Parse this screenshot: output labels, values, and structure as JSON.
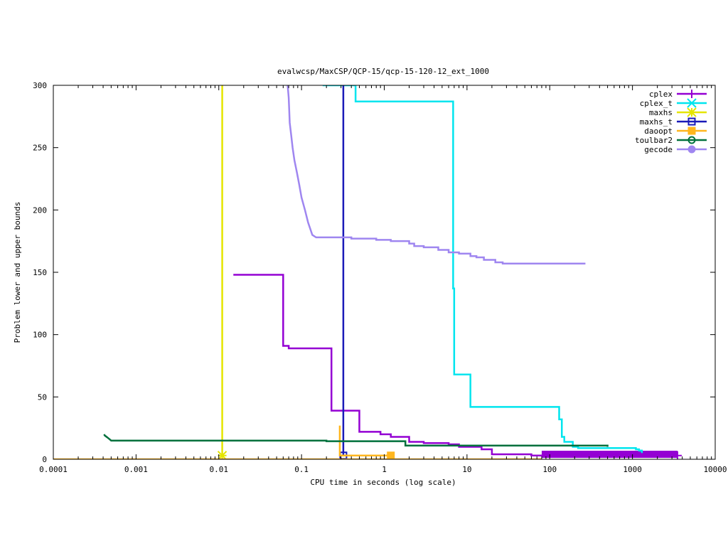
{
  "chart_data": {
    "type": "line",
    "title": "evalwcsp/MaxCSP/QCP-15/qcp-15-120-12_ext_1000",
    "xlabel": "CPU time in seconds (log scale)",
    "ylabel": "Problem lower and upper bounds",
    "xscale": "log",
    "xlim": [
      0.0001,
      10000
    ],
    "ylim": [
      0,
      300
    ],
    "x_ticks": [
      {
        "value": 0.0001,
        "label": "0.0001"
      },
      {
        "value": 0.001,
        "label": "0.001"
      },
      {
        "value": 0.01,
        "label": "0.01"
      },
      {
        "value": 0.1,
        "label": "0.1"
      },
      {
        "value": 1,
        "label": "1"
      },
      {
        "value": 10,
        "label": "10"
      },
      {
        "value": 100,
        "label": "100"
      },
      {
        "value": 1000,
        "label": "1000"
      },
      {
        "value": 10000,
        "label": "10000"
      }
    ],
    "y_ticks": [
      {
        "value": 0,
        "label": "0"
      },
      {
        "value": 50,
        "label": "50"
      },
      {
        "value": 100,
        "label": "100"
      },
      {
        "value": 150,
        "label": "150"
      },
      {
        "value": 200,
        "label": "200"
      },
      {
        "value": 250,
        "label": "250"
      },
      {
        "value": 300,
        "label": "300"
      }
    ],
    "grid": false,
    "legend_position": "top-right",
    "series": [
      {
        "name": "cplex",
        "color": "#9400d3",
        "marker": "plus",
        "points": [
          [
            0.015,
            148
          ],
          [
            0.06,
            148
          ],
          [
            0.06,
            91
          ],
          [
            0.07,
            91
          ],
          [
            0.07,
            89
          ],
          [
            0.23,
            89
          ],
          [
            0.23,
            39
          ],
          [
            0.5,
            39
          ],
          [
            0.5,
            22
          ],
          [
            0.9,
            22
          ],
          [
            0.9,
            20
          ],
          [
            1.2,
            20
          ],
          [
            1.2,
            18
          ],
          [
            2,
            18
          ],
          [
            2,
            14
          ],
          [
            3,
            14
          ],
          [
            3,
            13
          ],
          [
            6,
            13
          ],
          [
            6,
            12
          ],
          [
            8,
            12
          ],
          [
            8,
            10
          ],
          [
            15,
            10
          ],
          [
            15,
            8
          ],
          [
            20,
            8
          ],
          [
            20,
            4
          ],
          [
            60,
            4
          ],
          [
            60,
            3
          ],
          [
            3500,
            3
          ]
        ],
        "marker_points": [
          [
            3500,
            3
          ]
        ],
        "lower_band": {
          "x_start": 80,
          "x_end": 3500,
          "y": 4
        }
      },
      {
        "name": "cplex_t",
        "color": "#00e5ee",
        "marker": "x",
        "points": [
          [
            0.18,
            300
          ],
          [
            0.45,
            300
          ],
          [
            0.45,
            287
          ],
          [
            6.8,
            287
          ],
          [
            6.8,
            137
          ],
          [
            7,
            137
          ],
          [
            7,
            68
          ],
          [
            11,
            68
          ],
          [
            11,
            42
          ],
          [
            130,
            42
          ],
          [
            130,
            32
          ],
          [
            140,
            32
          ],
          [
            140,
            18
          ],
          [
            150,
            18
          ],
          [
            150,
            14
          ],
          [
            190,
            14
          ],
          [
            190,
            10
          ],
          [
            220,
            10
          ],
          [
            220,
            9
          ],
          [
            1100,
            9
          ],
          [
            1100,
            8
          ],
          [
            1200,
            8
          ],
          [
            1200,
            7
          ],
          [
            1300,
            7
          ],
          [
            1300,
            5
          ]
        ],
        "marker_points": []
      },
      {
        "name": "maxhs",
        "color": "#e5e500",
        "marker": "star",
        "points": [
          [
            0.011,
            300
          ],
          [
            0.011,
            3
          ]
        ],
        "marker_points": [
          [
            0.011,
            3
          ]
        ]
      },
      {
        "name": "maxhs_t",
        "color": "#1a1ab8",
        "marker": "square",
        "points": [
          [
            0.32,
            300
          ],
          [
            0.32,
            3
          ]
        ],
        "marker_points": [
          [
            0.32,
            3
          ]
        ]
      },
      {
        "name": "daoopt",
        "color": "#ffb61e",
        "marker": "filled-square",
        "points": [
          [
            0.0001,
            0
          ],
          [
            80,
            0
          ]
        ],
        "extra_paths": [
          [
            [
              0.29,
              27
            ],
            [
              0.29,
              3
            ],
            [
              1.2,
              3
            ]
          ],
          [
            [
              0.29,
              3
            ],
            [
              0.3,
              3
            ]
          ]
        ],
        "marker_points": [
          [
            1.2,
            3
          ]
        ]
      },
      {
        "name": "toulbar2",
        "color": "#00703c",
        "marker": "circle",
        "points": [
          [
            0.00041,
            20
          ],
          [
            0.00042,
            19
          ],
          [
            0.00044,
            18
          ],
          [
            0.00046,
            17
          ],
          [
            0.00048,
            16
          ],
          [
            0.0005,
            15
          ],
          [
            0.2,
            15
          ],
          [
            0.2,
            14.5
          ],
          [
            1.8,
            14.5
          ],
          [
            1.8,
            11
          ],
          [
            500,
            11
          ],
          [
            500,
            10
          ]
        ],
        "marker_points": []
      },
      {
        "name": "gecode",
        "color": "#9f86f0",
        "marker": "filled-circle",
        "points": [
          [
            0.068,
            300
          ],
          [
            0.07,
            290
          ],
          [
            0.071,
            280
          ],
          [
            0.072,
            270
          ],
          [
            0.075,
            260
          ],
          [
            0.078,
            250
          ],
          [
            0.082,
            240
          ],
          [
            0.088,
            230
          ],
          [
            0.094,
            220
          ],
          [
            0.1,
            210
          ],
          [
            0.11,
            200
          ],
          [
            0.12,
            190
          ],
          [
            0.135,
            180
          ],
          [
            0.15,
            178
          ],
          [
            0.4,
            178
          ],
          [
            0.4,
            177
          ],
          [
            0.8,
            177
          ],
          [
            0.8,
            176
          ],
          [
            1.2,
            176
          ],
          [
            1.2,
            175
          ],
          [
            2,
            175
          ],
          [
            2,
            173
          ],
          [
            2.3,
            173
          ],
          [
            2.3,
            171
          ],
          [
            3,
            171
          ],
          [
            3,
            170
          ],
          [
            4.5,
            170
          ],
          [
            4.5,
            168
          ],
          [
            6,
            168
          ],
          [
            6,
            166
          ],
          [
            8,
            166
          ],
          [
            8,
            165
          ],
          [
            11,
            165
          ],
          [
            11,
            163
          ],
          [
            13,
            163
          ],
          [
            13,
            162
          ],
          [
            16,
            162
          ],
          [
            16,
            160
          ],
          [
            22,
            160
          ],
          [
            22,
            158
          ],
          [
            27,
            158
          ],
          [
            27,
            157
          ],
          [
            270,
            157
          ]
        ],
        "marker_points": []
      }
    ]
  }
}
